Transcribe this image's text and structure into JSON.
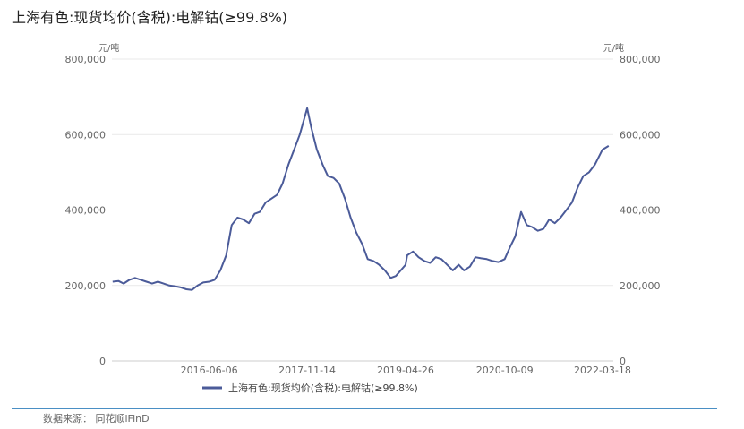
{
  "header": {
    "title": "上海有色:现货均价(含税):电解钴(≥99.8%)"
  },
  "footer": {
    "source": "数据来源： 同花顺iFinD"
  },
  "colors": {
    "series": "#4b5b99",
    "rule": "#4a8fc4",
    "grid": "#e9e9e9"
  },
  "chart_data": {
    "type": "line",
    "title": "",
    "y_unit_left": "元/吨",
    "y_unit_right": "元/吨",
    "ylim": [
      0,
      800000
    ],
    "yticks": [
      0,
      200000,
      400000,
      600000,
      800000
    ],
    "ytick_labels": [
      "0",
      "200,000",
      "400,000",
      "600,000",
      "800,000"
    ],
    "xlim": [
      "2015-01-01",
      "2022-05-15"
    ],
    "xticks": [
      "2016-06-06",
      "2017-11-14",
      "2019-04-26",
      "2020-10-09",
      "2022-03-18"
    ],
    "grid": "horizontal",
    "legend_position": "bottom",
    "series": [
      {
        "name": "上海有色:现货均价(含税):电解钴(≥99.8%)",
        "x": [
          "2015-01-05",
          "2015-02-05",
          "2015-03-05",
          "2015-04-05",
          "2015-05-05",
          "2015-06-05",
          "2015-07-05",
          "2015-08-05",
          "2015-09-05",
          "2015-10-05",
          "2015-11-05",
          "2015-12-05",
          "2016-01-05",
          "2016-02-05",
          "2016-03-05",
          "2016-04-05",
          "2016-05-05",
          "2016-06-06",
          "2016-07-05",
          "2016-08-05",
          "2016-09-05",
          "2016-10-05",
          "2016-11-05",
          "2016-12-05",
          "2017-01-05",
          "2017-02-05",
          "2017-03-05",
          "2017-04-05",
          "2017-05-05",
          "2017-06-05",
          "2017-07-05",
          "2017-08-05",
          "2017-09-05",
          "2017-10-05",
          "2017-11-14",
          "2017-12-05",
          "2018-01-05",
          "2018-02-05",
          "2018-03-05",
          "2018-04-05",
          "2018-05-05",
          "2018-06-05",
          "2018-07-05",
          "2018-08-05",
          "2018-09-05",
          "2018-10-05",
          "2018-11-05",
          "2018-12-05",
          "2019-01-05",
          "2019-02-05",
          "2019-03-05",
          "2019-04-26",
          "2019-05-05",
          "2019-06-05",
          "2019-07-05",
          "2019-08-05",
          "2019-09-05",
          "2019-10-05",
          "2019-11-05",
          "2019-12-05",
          "2020-01-05",
          "2020-02-05",
          "2020-03-05",
          "2020-04-05",
          "2020-05-05",
          "2020-06-05",
          "2020-07-05",
          "2020-08-05",
          "2020-09-05",
          "2020-10-09",
          "2020-11-05",
          "2020-12-05",
          "2021-01-05",
          "2021-02-05",
          "2021-03-05",
          "2021-04-05",
          "2021-05-05",
          "2021-06-05",
          "2021-07-05",
          "2021-08-05",
          "2021-09-05",
          "2021-10-05",
          "2021-11-05",
          "2021-12-05",
          "2022-01-05",
          "2022-02-05",
          "2022-03-18",
          "2022-04-20"
        ],
        "values": [
          210000,
          212000,
          205000,
          215000,
          220000,
          215000,
          210000,
          205000,
          210000,
          205000,
          200000,
          198000,
          195000,
          190000,
          188000,
          200000,
          208000,
          210000,
          215000,
          240000,
          280000,
          360000,
          380000,
          375000,
          365000,
          390000,
          395000,
          420000,
          430000,
          440000,
          470000,
          520000,
          560000,
          600000,
          670000,
          620000,
          560000,
          520000,
          490000,
          485000,
          470000,
          430000,
          380000,
          340000,
          310000,
          270000,
          265000,
          255000,
          240000,
          220000,
          225000,
          255000,
          280000,
          290000,
          275000,
          265000,
          260000,
          275000,
          270000,
          255000,
          240000,
          255000,
          240000,
          250000,
          275000,
          272000,
          270000,
          265000,
          262000,
          270000,
          300000,
          330000,
          395000,
          360000,
          355000,
          345000,
          350000,
          375000,
          365000,
          380000,
          400000,
          420000,
          460000,
          490000,
          500000,
          520000,
          560000,
          570000
        ]
      }
    ]
  }
}
